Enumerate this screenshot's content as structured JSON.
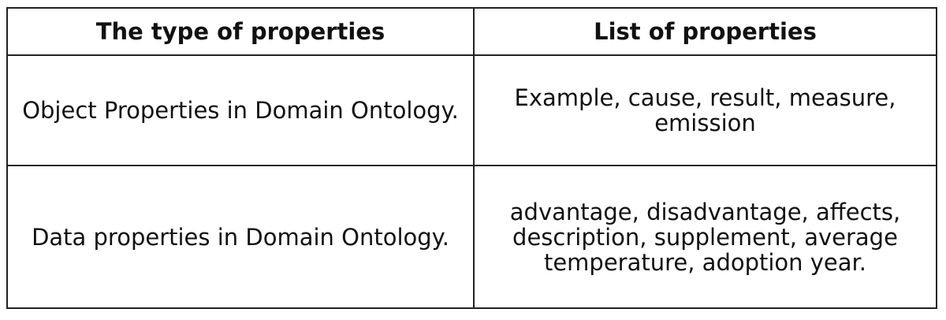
{
  "table": {
    "headers": [
      "The type of properties",
      "List of properties"
    ],
    "rows": [
      [
        "Object Properties in Domain Ontology.",
        "Example, cause, result, measure, emission"
      ],
      [
        "Data properties in Domain Ontology.",
        "advantage, disadvantage, affects, description, supplement, average temperature, adoption year."
      ]
    ]
  }
}
